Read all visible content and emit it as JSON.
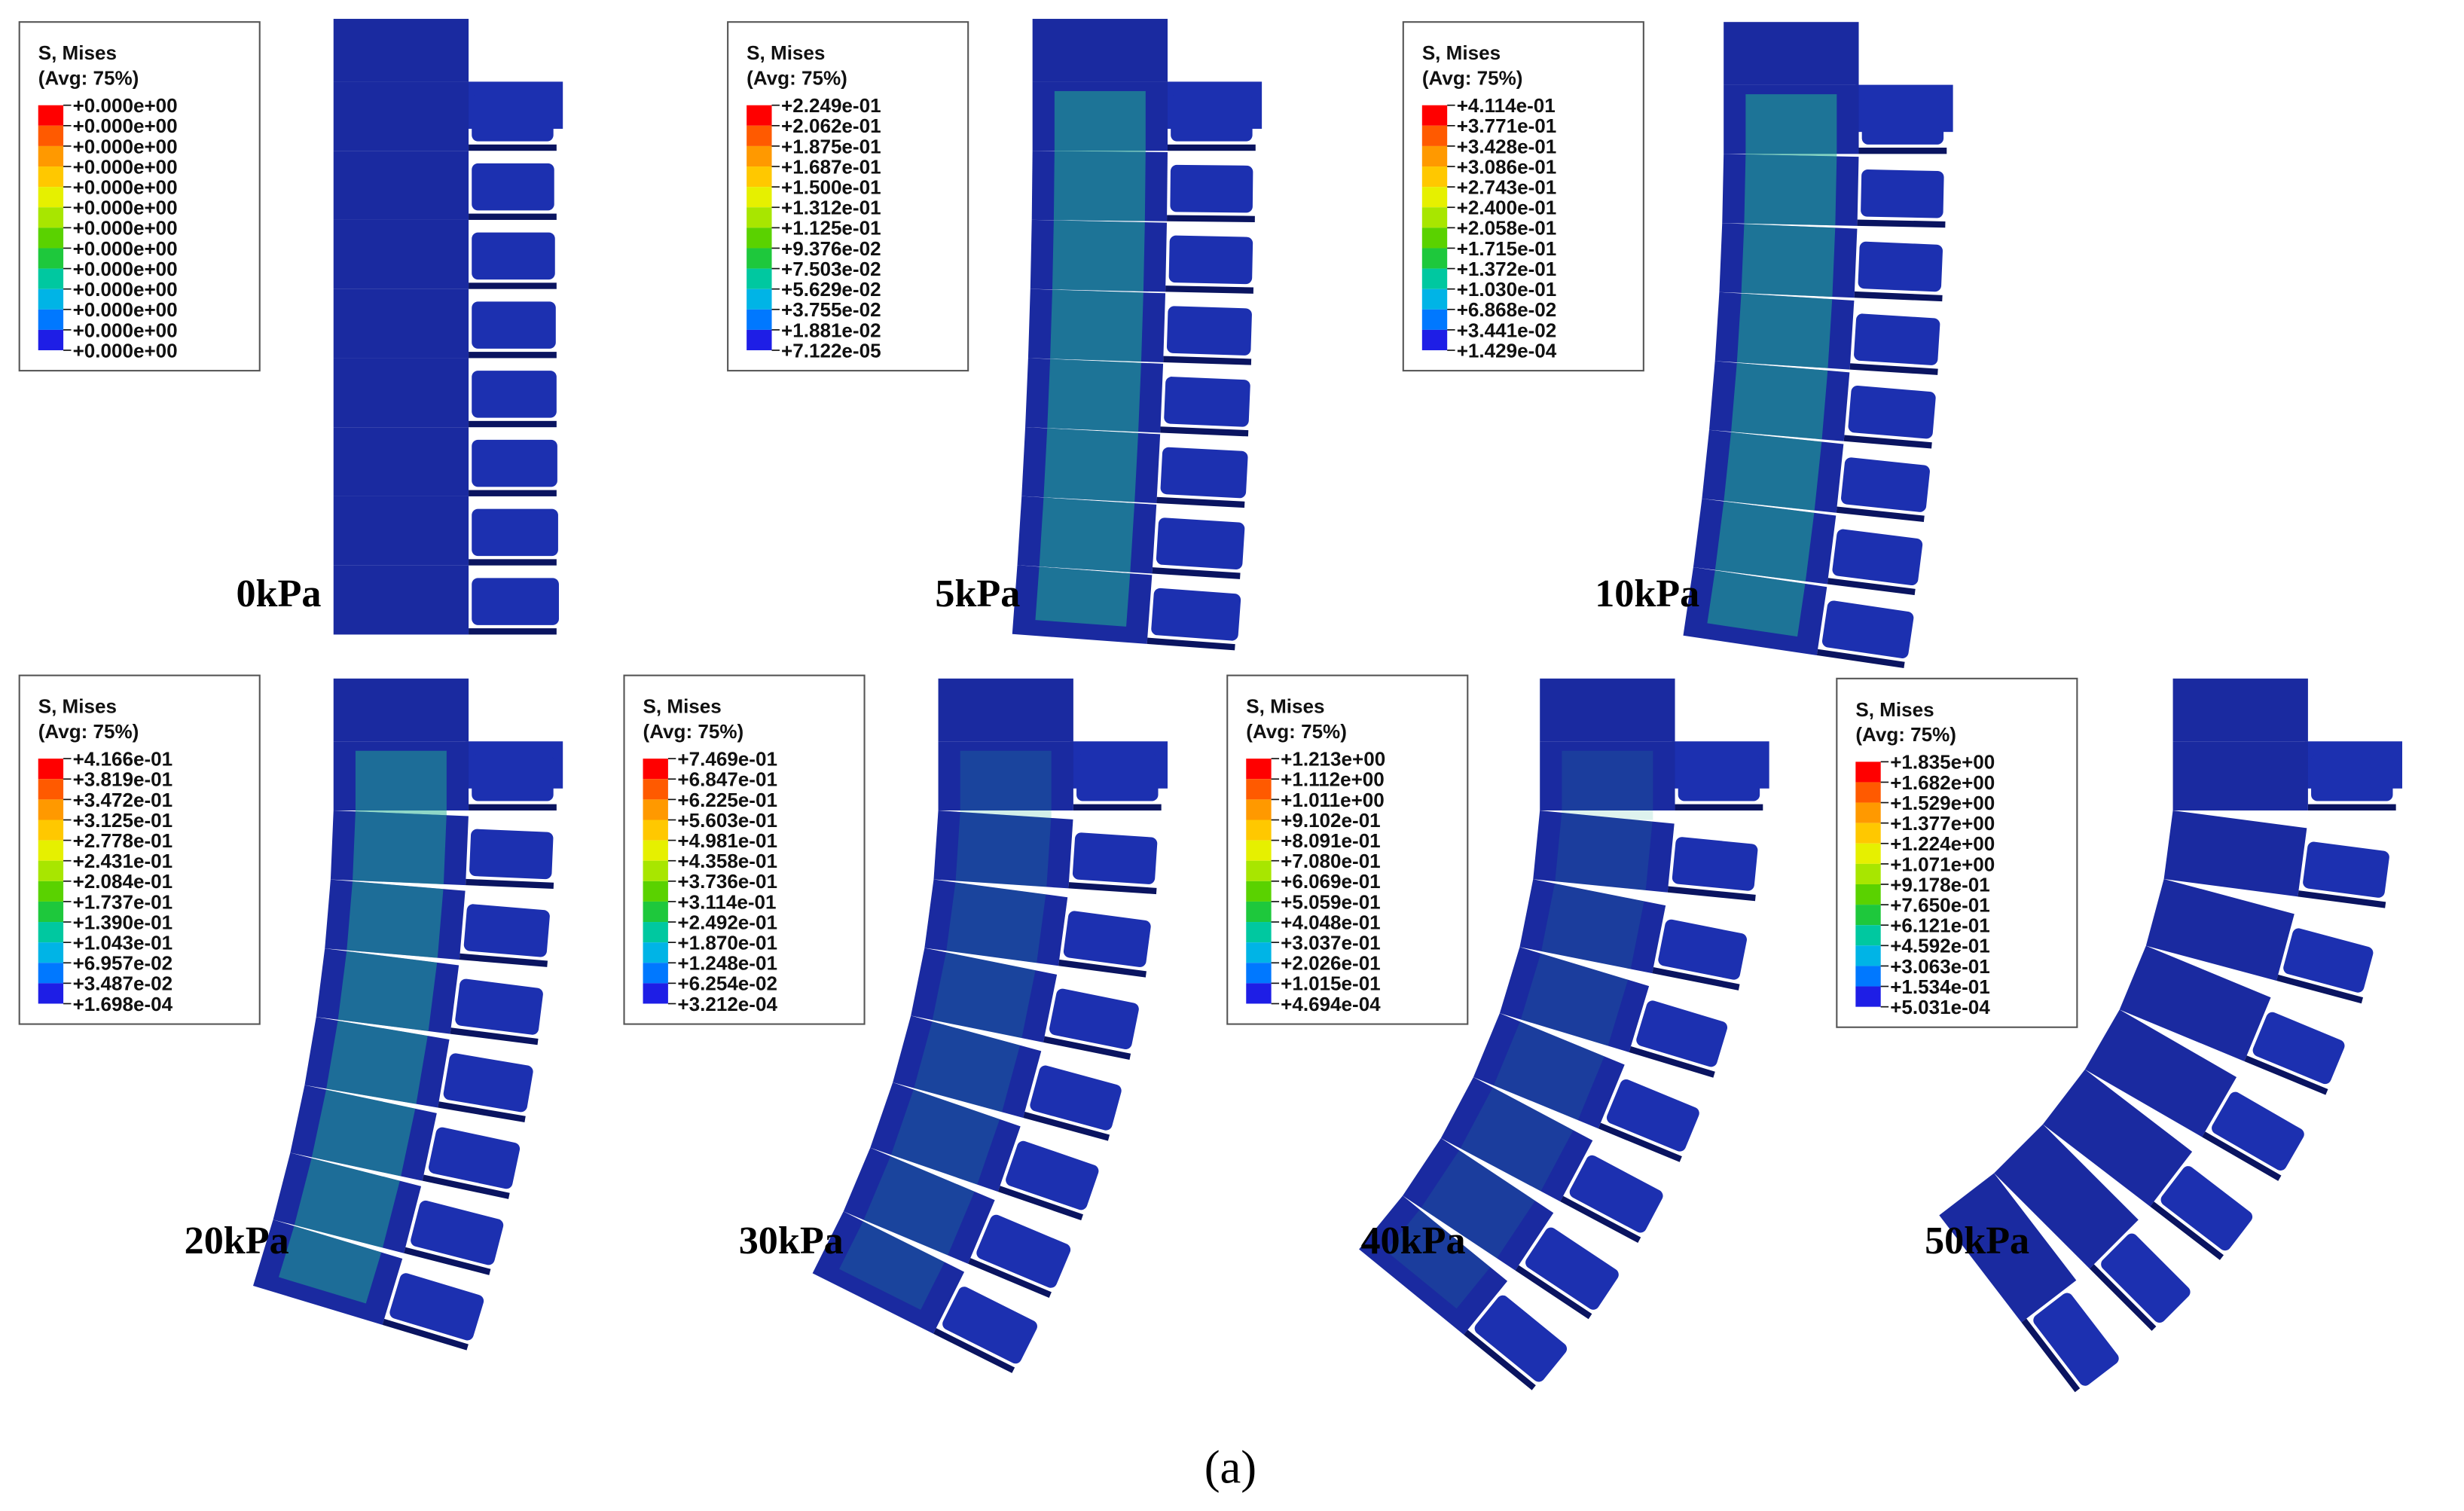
{
  "panels": [
    {
      "legend_title": "S, Mises",
      "legend_subtitle": "(Avg: 75%)",
      "label": "0kPa",
      "legend_values": [
        "+0.000e+00",
        "+0.000e+00",
        "+0.000e+00",
        "+0.000e+00",
        "+0.000e+00",
        "+0.000e+00",
        "+0.000e+00",
        "+0.000e+00",
        "+0.000e+00",
        "+0.000e+00",
        "+0.000e+00",
        "+0.000e+00",
        "+0.000e+00"
      ]
    },
    {
      "legend_title": "S, Mises",
      "legend_subtitle": "(Avg: 75%)",
      "label": "5kPa",
      "legend_values": [
        "+2.249e-01",
        "+2.062e-01",
        "+1.875e-01",
        "+1.687e-01",
        "+1.500e-01",
        "+1.312e-01",
        "+1.125e-01",
        "+9.376e-02",
        "+7.503e-02",
        "+5.629e-02",
        "+3.755e-02",
        "+1.881e-02",
        "+7.122e-05"
      ]
    },
    {
      "legend_title": "S, Mises",
      "legend_subtitle": "(Avg: 75%)",
      "label": "10kPa",
      "legend_values": [
        "+4.114e-01",
        "+3.771e-01",
        "+3.428e-01",
        "+3.086e-01",
        "+2.743e-01",
        "+2.400e-01",
        "+2.058e-01",
        "+1.715e-01",
        "+1.372e-01",
        "+1.030e-01",
        "+6.868e-02",
        "+3.441e-02",
        "+1.429e-04"
      ]
    },
    {
      "legend_title": "S, Mises",
      "legend_subtitle": "(Avg: 75%)",
      "label": "20kPa",
      "legend_values": [
        "+4.166e-01",
        "+3.819e-01",
        "+3.472e-01",
        "+3.125e-01",
        "+2.778e-01",
        "+2.431e-01",
        "+2.084e-01",
        "+1.737e-01",
        "+1.390e-01",
        "+1.043e-01",
        "+6.957e-02",
        "+3.487e-02",
        "+1.698e-04"
      ]
    },
    {
      "legend_title": "S, Mises",
      "legend_subtitle": "(Avg: 75%)",
      "label": "30kPa",
      "legend_values": [
        "+7.469e-01",
        "+6.847e-01",
        "+6.225e-01",
        "+5.603e-01",
        "+4.981e-01",
        "+4.358e-01",
        "+3.736e-01",
        "+3.114e-01",
        "+2.492e-01",
        "+1.870e-01",
        "+1.248e-01",
        "+6.254e-02",
        "+3.212e-04"
      ]
    },
    {
      "legend_title": "S, Mises",
      "legend_subtitle": "(Avg: 75%)",
      "label": "40kPa",
      "legend_values": [
        "+1.213e+00",
        "+1.112e+00",
        "+1.011e+00",
        "+9.102e-01",
        "+8.091e-01",
        "+7.080e-01",
        "+6.069e-01",
        "+5.059e-01",
        "+4.048e-01",
        "+3.037e-01",
        "+2.026e-01",
        "+1.015e-01",
        "+4.694e-04"
      ]
    },
    {
      "legend_title": "S, Mises",
      "legend_subtitle": "(Avg: 75%)",
      "label": "50kPa",
      "legend_values": [
        "+1.835e+00",
        "+1.682e+00",
        "+1.529e+00",
        "+1.377e+00",
        "+1.224e+00",
        "+1.071e+00",
        "+9.178e-01",
        "+7.650e-01",
        "+6.121e-01",
        "+4.592e-01",
        "+3.063e-01",
        "+1.534e-01",
        "+5.031e-04"
      ]
    }
  ],
  "caption": "(a)"
}
